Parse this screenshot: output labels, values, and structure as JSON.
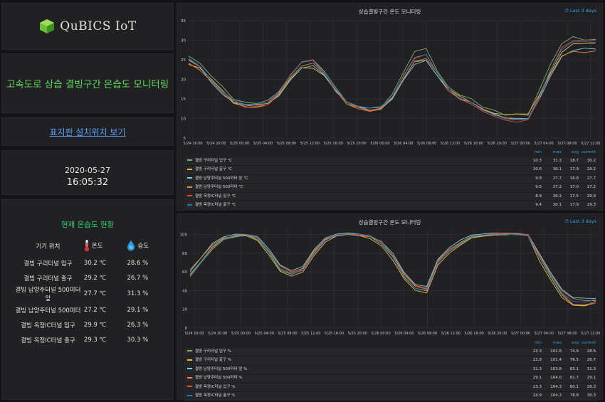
{
  "logo": {
    "text": "QuBICS IoT"
  },
  "title": "고속도로 상습 결빙구간 온습도 모니터링",
  "map_link": "표지판 설치위치 보기",
  "datetime": {
    "date": "2020-05-27",
    "time": "16:05:32"
  },
  "status": {
    "title": "현재 온습도 현황",
    "col_location": "기기 위치",
    "col_temp": "온도",
    "col_hum": "습도",
    "hum_icon_text": "%",
    "rows": [
      {
        "name": "결빙 구리터널 입구",
        "temp": "30.2 ℃",
        "hum": "28.6 %"
      },
      {
        "name": "결빙 구리터널 출구",
        "temp": "29.2 ℃",
        "hum": "26.7 %"
      },
      {
        "name": "결빙 남양주터널 500미터 앞",
        "temp": "27.7 ℃",
        "hum": "31.3 %"
      },
      {
        "name": "결빙 남양주터널 500미터",
        "temp": "27.2 ℃",
        "hum": "29.1 %"
      },
      {
        "name": "결빙 옥정IC터널 입구",
        "temp": "29.9 ℃",
        "hum": "26.3 %"
      },
      {
        "name": "결빙 옥정IC터널 출구",
        "temp": "29.3 ℃",
        "hum": "30.3 %"
      }
    ]
  },
  "colors": [
    "#7eb26d",
    "#eab839",
    "#6ed0e0",
    "#ef843c",
    "#e24d42",
    "#1f78c1"
  ],
  "legend_headers": [
    "min",
    "max",
    "avg",
    "current"
  ],
  "chart_data": [
    {
      "type": "line",
      "title": "상습결빙구간 온도 모니터링",
      "range_label": "Last 3 days",
      "x_ticks": [
        "5/24 16:00",
        "5/24 20:00",
        "5/25 00:00",
        "5/25 04:00",
        "5/25 08:00",
        "5/25 12:00",
        "5/25 16:00",
        "5/25 20:00",
        "5/26 00:00",
        "5/26 04:00",
        "5/26 08:00",
        "5/26 12:00",
        "5/26 16:00",
        "5/26 20:00",
        "5/27 00:00",
        "5/27 04:00",
        "5/27 08:00",
        "5/27 12:00"
      ],
      "y_ticks": [
        5,
        10,
        15,
        20,
        25,
        30,
        35
      ],
      "ylim": [
        5,
        35
      ],
      "x_hours": [
        0,
        2,
        4,
        6,
        8,
        10,
        12,
        14,
        16,
        18,
        20,
        22,
        24,
        26,
        28,
        30,
        32,
        34,
        36,
        38,
        40,
        42,
        44,
        46,
        48,
        50,
        52,
        54,
        56,
        58,
        60,
        62,
        64,
        66,
        68,
        70,
        72
      ],
      "series": [
        {
          "name": "결빙 구리터널 입구 ℃",
          "min": "10.3",
          "max": "31.3",
          "avg": "18.7",
          "current": "30.2",
          "values": [
            26,
            24,
            21,
            18,
            15,
            14,
            14,
            14.5,
            17,
            21,
            24.5,
            25,
            22,
            18,
            14,
            13,
            12.5,
            13,
            16,
            22,
            27,
            28,
            22,
            18,
            16,
            15,
            13,
            12,
            11,
            11,
            11,
            17,
            24,
            29,
            31,
            30,
            30.2
          ]
        },
        {
          "name": "결빙 구리터널 출구 ℃",
          "min": "10.6",
          "max": "30.1",
          "avg": "17.9",
          "current": "29.2",
          "values": [
            24,
            23,
            20,
            17,
            14,
            13,
            13,
            13.5,
            16,
            20,
            23,
            23,
            21,
            17,
            13.5,
            12.5,
            12,
            12.5,
            15,
            20,
            24.5,
            25,
            21,
            17.5,
            15.5,
            14,
            12.5,
            11.5,
            11,
            11,
            11,
            16,
            22,
            27,
            29,
            29,
            29.2
          ]
        },
        {
          "name": "결빙 남양주터널 500미터 앞 ℃",
          "min": "9.8",
          "max": "27.7",
          "avg": "16.8",
          "current": "27.7",
          "values": [
            25,
            23,
            19,
            16,
            14,
            13.5,
            13.5,
            14,
            16,
            20,
            23,
            23.5,
            21,
            17,
            14,
            13,
            12,
            12.5,
            15,
            20,
            24,
            25,
            21,
            17,
            15,
            14,
            12,
            11,
            10,
            10,
            10,
            15,
            21,
            26,
            27.5,
            28,
            27.7
          ]
        },
        {
          "name": "결빙 남양주터널 500미터 ℃",
          "min": "9.5",
          "max": "27.2",
          "avg": "17.0",
          "current": "27.2",
          "values": [
            24,
            22.5,
            19.5,
            16.5,
            14,
            13,
            13.5,
            14,
            16.5,
            20.5,
            23.5,
            24,
            21.5,
            17.5,
            14,
            13,
            12,
            12.5,
            15.5,
            20,
            24.5,
            25.5,
            21.5,
            17.5,
            15,
            14,
            12.5,
            11,
            10,
            9.8,
            10,
            15.5,
            21.5,
            26,
            27,
            27,
            27.2
          ]
        },
        {
          "name": "결빙 옥정IC터널 입구 ℃",
          "min": "8.9",
          "max": "30.2",
          "avg": "17.5",
          "current": "29.9",
          "values": [
            25,
            23,
            20,
            17,
            14.5,
            13,
            13,
            13.5,
            16.5,
            21,
            24.5,
            25,
            21.5,
            17,
            14,
            12.5,
            12,
            12.5,
            15.5,
            21,
            25.5,
            26.5,
            21.5,
            17,
            15,
            13.5,
            12,
            10.5,
            9.5,
            9.2,
            9.5,
            15,
            22.5,
            28,
            30,
            30,
            29.9
          ]
        },
        {
          "name": "결빙 옥정IC터널 출구 ℃",
          "min": "9.4",
          "max": "30.1",
          "avg": "17.9",
          "current": "29.3",
          "values": [
            25.5,
            23.5,
            20,
            17,
            14.5,
            13.5,
            13.5,
            14,
            17,
            21,
            24.5,
            25,
            21.5,
            17.5,
            14,
            13,
            12.5,
            13,
            15.5,
            21,
            25.5,
            26.5,
            21.5,
            17.5,
            15,
            14,
            12,
            11,
            10,
            9.8,
            10,
            15.5,
            22.5,
            27.5,
            29.5,
            29.5,
            29.3
          ]
        }
      ]
    },
    {
      "type": "line",
      "title": "상습결빙구간 온도 모니터링",
      "range_label": "Last 3 days",
      "x_ticks": [
        "5/24 16:00",
        "5/24 20:00",
        "5/25 00:00",
        "5/25 04:00",
        "5/25 08:00",
        "5/25 12:00",
        "5/25 16:00",
        "5/25 20:00",
        "5/26 00:00",
        "5/26 04:00",
        "5/26 08:00",
        "5/26 12:00",
        "5/26 16:00",
        "5/26 20:00",
        "5/27 00:00",
        "5/27 04:00",
        "5/27 08:00",
        "5/27 12:00"
      ],
      "y_ticks": [
        0,
        20,
        40,
        60,
        80,
        100
      ],
      "ylim": [
        0,
        105
      ],
      "x_hours": [
        0,
        2,
        4,
        6,
        8,
        10,
        12,
        14,
        16,
        18,
        20,
        22,
        24,
        26,
        28,
        30,
        32,
        34,
        36,
        38,
        40,
        42,
        44,
        46,
        48,
        50,
        52,
        54,
        56,
        58,
        60,
        62,
        64,
        66,
        68,
        70,
        72
      ],
      "series": [
        {
          "name": "결빙 구리터널 입구 %",
          "min": "22.3",
          "max": "101.8",
          "avg": "74.6",
          "current": "28.6",
          "values": [
            55,
            70,
            85,
            94,
            98,
            99,
            95,
            80,
            62,
            57,
            62,
            80,
            94,
            99,
            100,
            99.5,
            97,
            90,
            75,
            55,
            42,
            40,
            70,
            82,
            90,
            97,
            99,
            100,
            100,
            100,
            99,
            75,
            55,
            35,
            25,
            24,
            28.6
          ]
        },
        {
          "name": "결빙 구리터널 출구 %",
          "min": "22.8",
          "max": "101.4",
          "avg": "76.5",
          "current": "26.7",
          "values": [
            58,
            72,
            87,
            95,
            98,
            99,
            94,
            78,
            60,
            55,
            60,
            78,
            92,
            98,
            99.5,
            99,
            96,
            88,
            72,
            52,
            40,
            38,
            68,
            80,
            88,
            96,
            98.5,
            100,
            100,
            100,
            98,
            72,
            52,
            33,
            24,
            23,
            26.7
          ]
        },
        {
          "name": "결빙 남양주터널 500미터 앞 %",
          "min": "31.3",
          "max": "103.8",
          "avg": "83.1",
          "current": "31.3",
          "values": [
            60,
            75,
            90,
            97,
            100,
            100,
            98,
            85,
            68,
            62,
            66,
            84,
            96,
            100,
            101,
            100,
            98,
            92,
            80,
            60,
            47,
            45,
            74,
            86,
            94,
            99,
            100,
            101,
            101,
            101,
            100,
            80,
            60,
            42,
            33,
            32,
            31.3
          ]
        },
        {
          "name": "결빙 남양주터널 500미터 %",
          "min": "29.1",
          "max": "104.0",
          "avg": "81.7",
          "current": "29.1",
          "values": [
            62,
            76,
            89,
            96,
            99,
            99,
            96,
            83,
            66,
            60,
            64,
            82,
            95,
            99,
            100,
            99.5,
            97.5,
            91,
            78,
            58,
            45,
            43,
            72,
            84,
            92,
            98,
            99.5,
            100,
            100,
            100,
            99,
            78,
            58,
            40,
            31,
            30,
            29.1
          ]
        },
        {
          "name": "결빙 옥정IC터널 입구 %",
          "min": "23.3",
          "max": "104.3",
          "avg": "80.1",
          "current": "26.3",
          "values": [
            56,
            71,
            86,
            95,
            99,
            100,
            97,
            82,
            64,
            58,
            63,
            81,
            95,
            100,
            100.5,
            100,
            98,
            92,
            77,
            57,
            44,
            42,
            71,
            83,
            91,
            98,
            99.5,
            101,
            101,
            101,
            99.5,
            77,
            56,
            36,
            26,
            25,
            26.3
          ]
        },
        {
          "name": "결빙 옥정IC터널 출구 %",
          "min": "24.9",
          "max": "104.2",
          "avg": "78.8",
          "current": "30.3",
          "values": [
            57,
            72,
            87,
            95,
            99,
            99.5,
            96,
            81,
            63,
            58,
            62,
            80,
            94,
            99.5,
            100,
            100,
            97.5,
            91,
            76,
            56,
            43,
            41,
            70,
            82,
            90,
            97.5,
            99,
            100.5,
            100.5,
            100.5,
            99,
            76,
            56,
            37,
            28,
            27,
            30.3
          ]
        }
      ]
    }
  ]
}
